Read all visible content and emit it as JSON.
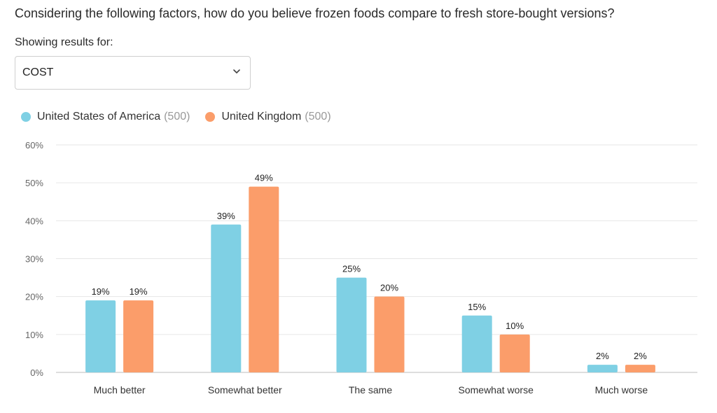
{
  "question": "Considering the following factors, how do you believe frozen foods compare to fresh store-bought versions?",
  "filter": {
    "label": "Showing results for:",
    "selected": "COST"
  },
  "legend": [
    {
      "name": "United States of America",
      "count": "(500)",
      "color": "#7fd0e4"
    },
    {
      "name": "United Kingdom",
      "count": "(500)",
      "color": "#fb9d6a"
    }
  ],
  "chart_data": {
    "type": "bar",
    "categories": [
      "Much better",
      "Somewhat better",
      "The same",
      "Somewhat worse",
      "Much worse"
    ],
    "series": [
      {
        "name": "United States of America",
        "values": [
          19,
          39,
          25,
          15,
          2
        ],
        "labels": [
          "19%",
          "39%",
          "25%",
          "15%",
          "2%"
        ],
        "color": "#7fd0e4"
      },
      {
        "name": "United Kingdom",
        "values": [
          19,
          49,
          20,
          10,
          2
        ],
        "labels": [
          "19%",
          "49%",
          "20%",
          "10%",
          "2%"
        ],
        "color": "#fb9d6a"
      }
    ],
    "yticks": [
      "0%",
      "10%",
      "20%",
      "30%",
      "40%",
      "50%",
      "60%"
    ],
    "ylim": [
      0,
      60
    ],
    "grid": true
  }
}
